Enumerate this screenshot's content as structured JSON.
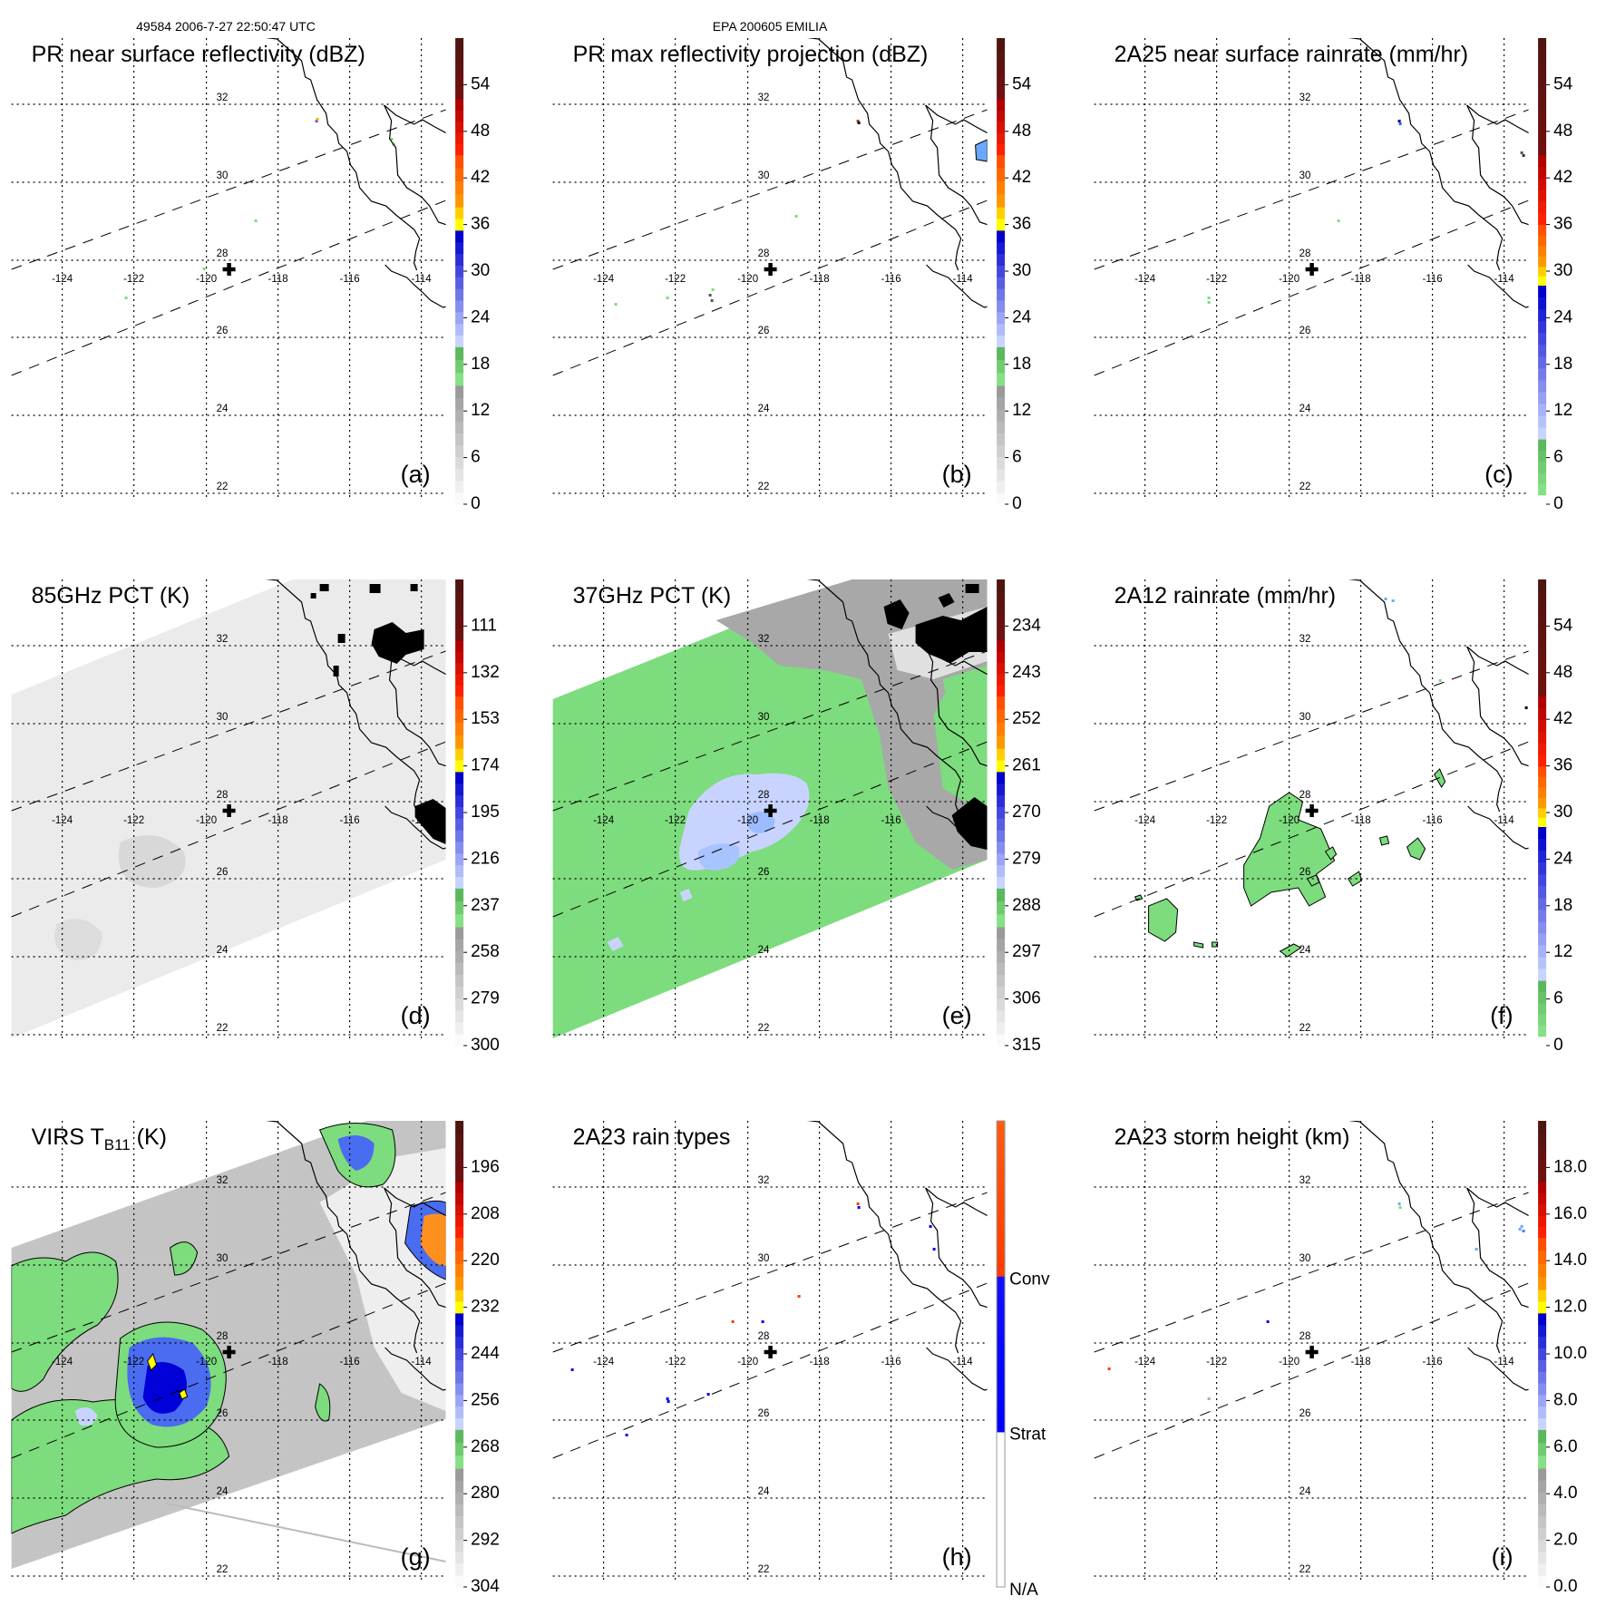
{
  "header": {
    "orbit_time": "49584 2006-7-27 22:50:47 UTC",
    "storm": "EPA 200605 EMILIA"
  },
  "grid": {
    "lat_labels": [
      "32",
      "30",
      "28",
      "26",
      "24",
      "22"
    ],
    "lon_labels": [
      "-124",
      "-122",
      "-120",
      "-118",
      "-116",
      "-114"
    ]
  },
  "colors": {
    "swath_gray": "#c8c8c8",
    "pct_green": "#7ddc7d",
    "light_blue": "#c8d4ff",
    "black": "#000000"
  },
  "panels": [
    {
      "id": "a",
      "title": "PR near surface reflectivity (dBZ)",
      "letter": "(a)",
      "palette": "standard",
      "colorbar_labels": [
        "0",
        "6",
        "12",
        "18",
        "24",
        "30",
        "36",
        "42",
        "48",
        "54"
      ]
    },
    {
      "id": "b",
      "title": "PR max reflectivity projection (dBZ)",
      "letter": "(b)",
      "palette": "standard",
      "colorbar_labels": [
        "0",
        "6",
        "12",
        "18",
        "24",
        "30",
        "36",
        "42",
        "48",
        "54"
      ]
    },
    {
      "id": "c",
      "title": "2A25 near surface rainrate (mm/hr)",
      "letter": "(c)",
      "palette": "rain",
      "colorbar_labels": [
        "0",
        "6",
        "12",
        "18",
        "24",
        "30",
        "36",
        "42",
        "48",
        "54"
      ]
    },
    {
      "id": "d",
      "title": "85GHz PCT (K)",
      "letter": "(d)",
      "palette": "standard",
      "colorbar_labels": [
        "300",
        "279",
        "258",
        "237",
        "216",
        "195",
        "174",
        "153",
        "132",
        "111"
      ]
    },
    {
      "id": "e",
      "title": "37GHz PCT (K)",
      "letter": "(e)",
      "palette": "standard",
      "colorbar_labels": [
        "315",
        "306",
        "297",
        "288",
        "279",
        "270",
        "261",
        "252",
        "243",
        "234"
      ]
    },
    {
      "id": "f",
      "title": "2A12 rainrate (mm/hr)",
      "letter": "(f)",
      "palette": "rain",
      "colorbar_labels": [
        "0",
        "6",
        "12",
        "18",
        "24",
        "30",
        "36",
        "42",
        "48",
        "54"
      ]
    },
    {
      "id": "g",
      "title": "VIRS T",
      "title_sub": "B11",
      "title_suffix": " (K)",
      "letter": "(g)",
      "palette": "standard",
      "colorbar_labels": [
        "304",
        "292",
        "280",
        "268",
        "256",
        "244",
        "232",
        "220",
        "208",
        "196"
      ]
    },
    {
      "id": "h",
      "title": "2A23 rain types",
      "letter": "(h)",
      "palette": "types",
      "colorbar_labels": [
        "N/A",
        "Strat",
        "Conv"
      ]
    },
    {
      "id": "i",
      "title": "2A23 storm height (km)",
      "letter": "(i)",
      "palette": "standard",
      "colorbar_labels": [
        "0.0",
        "2.0",
        "4.0",
        "6.0",
        "8.0",
        "10.0",
        "12.0",
        "14.0",
        "16.0",
        "18.0"
      ]
    }
  ]
}
